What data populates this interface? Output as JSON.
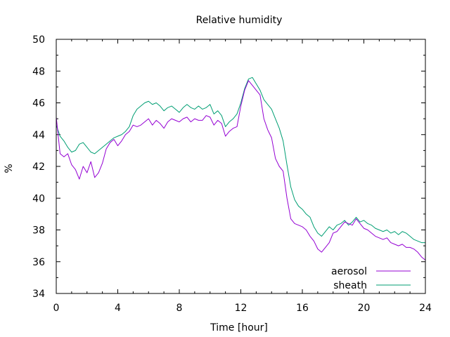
{
  "chart_data": {
    "type": "line",
    "title": "Relative humidity",
    "xlabel": "Time [hour]",
    "ylabel": "%",
    "xlim": [
      0,
      24
    ],
    "ylim": [
      34,
      50
    ],
    "xticks": [
      0,
      4,
      8,
      12,
      16,
      20,
      24
    ],
    "yticks": [
      34,
      36,
      38,
      40,
      42,
      44,
      46,
      48,
      50
    ],
    "xtick_labels": [
      "0",
      "4",
      "8",
      "12",
      "16",
      "20",
      "24"
    ],
    "ytick_labels": [
      "34",
      "36",
      "38",
      "40",
      "42",
      "44",
      "46",
      "48",
      "50"
    ],
    "grid": false,
    "legend_position": "bottom-right",
    "series": [
      {
        "name": "aerosol",
        "color": "#9400d3",
        "x": [
          0,
          0.25,
          0.5,
          0.75,
          1.0,
          1.25,
          1.5,
          1.75,
          2.0,
          2.25,
          2.5,
          2.75,
          3.0,
          3.25,
          3.5,
          3.75,
          4.0,
          4.25,
          4.5,
          4.75,
          5.0,
          5.25,
          5.5,
          5.75,
          6.0,
          6.25,
          6.5,
          6.75,
          7.0,
          7.25,
          7.5,
          7.75,
          8.0,
          8.25,
          8.5,
          8.75,
          9.0,
          9.25,
          9.5,
          9.75,
          10.0,
          10.25,
          10.5,
          10.75,
          11.0,
          11.25,
          11.5,
          11.75,
          12.0,
          12.25,
          12.5,
          12.75,
          13.0,
          13.25,
          13.5,
          13.75,
          14.0,
          14.25,
          14.5,
          14.75,
          15.0,
          15.25,
          15.5,
          15.75,
          16.0,
          16.25,
          16.5,
          16.75,
          17.0,
          17.25,
          17.5,
          17.75,
          18.0,
          18.25,
          18.5,
          18.75,
          19.0,
          19.25,
          19.5,
          19.75,
          20.0,
          20.25,
          20.5,
          20.75,
          21.0,
          21.25,
          21.5,
          21.75,
          22.0,
          22.25,
          22.5,
          22.75,
          23.0,
          23.25,
          23.5,
          23.75,
          24.0
        ],
        "y": [
          45.1,
          42.8,
          42.6,
          42.8,
          42.1,
          41.8,
          41.2,
          42.0,
          41.6,
          42.3,
          41.3,
          41.6,
          42.2,
          43.1,
          43.5,
          43.7,
          43.3,
          43.6,
          44.0,
          44.2,
          44.6,
          44.5,
          44.6,
          44.8,
          45.0,
          44.6,
          44.9,
          44.7,
          44.4,
          44.8,
          45.0,
          44.9,
          44.8,
          45.0,
          45.1,
          44.8,
          45.0,
          44.9,
          44.9,
          45.2,
          45.1,
          44.6,
          44.9,
          44.7,
          43.9,
          44.2,
          44.4,
          44.5,
          45.8,
          46.8,
          47.4,
          47.1,
          46.8,
          46.5,
          45.0,
          44.3,
          43.8,
          42.5,
          42.0,
          41.7,
          40.0,
          38.7,
          38.4,
          38.3,
          38.2,
          38.0,
          37.6,
          37.3,
          36.8,
          36.6,
          36.9,
          37.2,
          37.8,
          37.9,
          38.2,
          38.5,
          38.4,
          38.3,
          38.7,
          38.4,
          38.1,
          38.0,
          37.8,
          37.6,
          37.5,
          37.4,
          37.5,
          37.2,
          37.1,
          37.0,
          37.1,
          36.9,
          36.9,
          36.8,
          36.6,
          36.3,
          36.1
        ]
      },
      {
        "name": "sheath",
        "color": "#009e73",
        "x": [
          0,
          0.25,
          0.5,
          0.75,
          1.0,
          1.25,
          1.5,
          1.75,
          2.0,
          2.25,
          2.5,
          2.75,
          3.0,
          3.25,
          3.5,
          3.75,
          4.0,
          4.25,
          4.5,
          4.75,
          5.0,
          5.25,
          5.5,
          5.75,
          6.0,
          6.25,
          6.5,
          6.75,
          7.0,
          7.25,
          7.5,
          7.75,
          8.0,
          8.25,
          8.5,
          8.75,
          9.0,
          9.25,
          9.5,
          9.75,
          10.0,
          10.25,
          10.5,
          10.75,
          11.0,
          11.25,
          11.5,
          11.75,
          12.0,
          12.25,
          12.5,
          12.75,
          13.0,
          13.25,
          13.5,
          13.75,
          14.0,
          14.25,
          14.5,
          14.75,
          15.0,
          15.25,
          15.5,
          15.75,
          16.0,
          16.25,
          16.5,
          16.75,
          17.0,
          17.25,
          17.5,
          17.75,
          18.0,
          18.25,
          18.5,
          18.75,
          19.0,
          19.25,
          19.5,
          19.75,
          20.0,
          20.25,
          20.5,
          20.75,
          21.0,
          21.25,
          21.5,
          21.75,
          22.0,
          22.25,
          22.5,
          22.75,
          23.0,
          23.25,
          23.5,
          23.75,
          24.0
        ],
        "y": [
          44.6,
          43.9,
          43.6,
          43.2,
          42.9,
          43.0,
          43.4,
          43.5,
          43.2,
          42.9,
          42.8,
          43.0,
          43.2,
          43.4,
          43.6,
          43.8,
          43.9,
          44.0,
          44.2,
          44.5,
          45.2,
          45.6,
          45.8,
          46.0,
          46.1,
          45.9,
          46.0,
          45.8,
          45.5,
          45.7,
          45.8,
          45.6,
          45.4,
          45.7,
          45.9,
          45.7,
          45.6,
          45.8,
          45.6,
          45.7,
          45.9,
          45.3,
          45.5,
          45.2,
          44.5,
          44.8,
          45.0,
          45.3,
          46.0,
          46.9,
          47.5,
          47.6,
          47.2,
          46.8,
          46.2,
          45.9,
          45.6,
          45.0,
          44.4,
          43.6,
          42.1,
          40.7,
          39.9,
          39.5,
          39.3,
          39.0,
          38.8,
          38.2,
          37.8,
          37.6,
          37.9,
          38.2,
          38.0,
          38.3,
          38.4,
          38.6,
          38.3,
          38.5,
          38.8,
          38.5,
          38.6,
          38.4,
          38.3,
          38.1,
          38.0,
          37.9,
          38.0,
          37.8,
          37.9,
          37.7,
          37.9,
          37.8,
          37.6,
          37.4,
          37.3,
          37.2,
          37.2
        ]
      }
    ]
  }
}
